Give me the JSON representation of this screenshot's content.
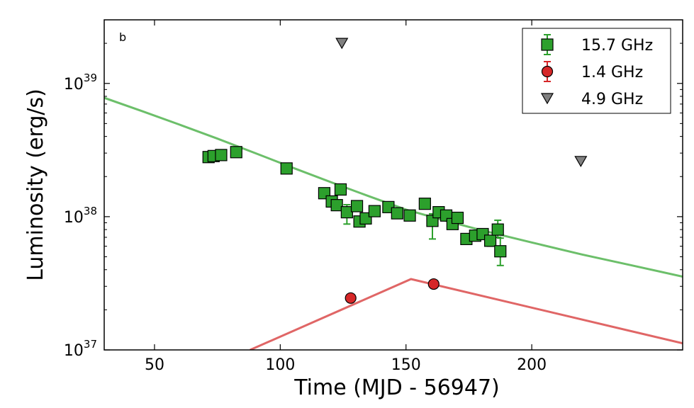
{
  "chart_data": {
    "type": "scatter",
    "panel_label": "b",
    "xlabel": "Time (MJD - 56947)",
    "ylabel": "Luminosity (erg/s)",
    "xlim": [
      30,
      260
    ],
    "ylim": [
      1e+37,
      3e+39
    ],
    "yscale": "log",
    "x_ticks": [
      50,
      100,
      150,
      200
    ],
    "y_ticks": [
      {
        "value": 1e+37,
        "base": "10",
        "exp": "37"
      },
      {
        "value": 1e+38,
        "base": "10",
        "exp": "38"
      },
      {
        "value": 1e+39,
        "base": "10",
        "exp": "39"
      }
    ],
    "series": [
      {
        "name": "15.7 GHz",
        "marker": "square",
        "color": "#2ca02c",
        "points": [
          {
            "x": 71.5,
            "y": 2.8e+38
          },
          {
            "x": 73.5,
            "y": 2.85e+38
          },
          {
            "x": 76.5,
            "y": 2.9e+38
          },
          {
            "x": 82.5,
            "y": 3.05e+38
          },
          {
            "x": 102.5,
            "y": 2.3e+38
          },
          {
            "x": 117.5,
            "y": 1.5e+38
          },
          {
            "x": 120.5,
            "y": 1.3e+38
          },
          {
            "x": 122.5,
            "y": 1.22e+38
          },
          {
            "x": 124,
            "y": 1.6e+38
          },
          {
            "x": 126.5,
            "y": 1.08e+38,
            "err": [
              2e+37,
              1.5e+37
            ]
          },
          {
            "x": 130.5,
            "y": 1.2e+38
          },
          {
            "x": 131.5,
            "y": 9.2e+37
          },
          {
            "x": 134,
            "y": 9.7e+37
          },
          {
            "x": 137.5,
            "y": 1.1e+38
          },
          {
            "x": 143,
            "y": 1.18e+38
          },
          {
            "x": 146.5,
            "y": 1.06e+38
          },
          {
            "x": 151.5,
            "y": 1.02e+38
          },
          {
            "x": 157.5,
            "y": 1.25e+38
          },
          {
            "x": 160.5,
            "y": 9.3e+37,
            "err": [
              2.5e+37,
              1.2e+37
            ]
          },
          {
            "x": 163,
            "y": 1.08e+38
          },
          {
            "x": 166,
            "y": 1.02e+38
          },
          {
            "x": 168.5,
            "y": 8.8e+37
          },
          {
            "x": 170.5,
            "y": 9.8e+37
          },
          {
            "x": 174,
            "y": 6.8e+37
          },
          {
            "x": 177.5,
            "y": 7.2e+37
          },
          {
            "x": 180.5,
            "y": 7.4e+37
          },
          {
            "x": 183.5,
            "y": 6.6e+37,
            "err": [
              6e+36,
              6e+36
            ]
          },
          {
            "x": 186.5,
            "y": 8e+37,
            "err": [
              1e+37,
              1.4e+37
            ]
          },
          {
            "x": 187.5,
            "y": 5.5e+37,
            "err": [
              1.2e+37,
              1.4e+37
            ]
          }
        ]
      },
      {
        "name": "1.4 GHz",
        "marker": "circle",
        "color": "#d62728",
        "points": [
          {
            "x": 128,
            "y": 2.45e+37
          },
          {
            "x": 161,
            "y": 3.12e+37
          }
        ]
      },
      {
        "name": "4.9 GHz",
        "marker": "triangle-down",
        "color": "#808080",
        "points": [
          {
            "x": 124.5,
            "y": 2e+39
          },
          {
            "x": 219.5,
            "y": 2.6e+38
          }
        ]
      }
    ],
    "model_curves": [
      {
        "name": "15.7 GHz model",
        "color": "#6cbf6a",
        "points": [
          {
            "x": 30,
            "y": 7.8e+38
          },
          {
            "x": 45,
            "y": 6.2e+38
          },
          {
            "x": 60,
            "y": 4.9e+38
          },
          {
            "x": 75,
            "y": 3.85e+38
          },
          {
            "x": 90,
            "y": 3e+38
          },
          {
            "x": 105,
            "y": 2.33e+38
          },
          {
            "x": 120,
            "y": 1.82e+38
          },
          {
            "x": 135,
            "y": 1.43e+38
          },
          {
            "x": 150,
            "y": 1.13e+38
          },
          {
            "x": 165,
            "y": 9.4e+37
          },
          {
            "x": 180,
            "y": 7.9e+37
          },
          {
            "x": 200,
            "y": 6.4e+37
          },
          {
            "x": 220,
            "y": 5.2e+37
          },
          {
            "x": 240,
            "y": 4.3e+37
          },
          {
            "x": 260,
            "y": 3.55e+37
          }
        ]
      },
      {
        "name": "1.4 GHz model",
        "color": "#e06666",
        "points": [
          {
            "x": 88,
            "y": 1e+37
          },
          {
            "x": 152,
            "y": 3.4e+37
          },
          {
            "x": 260,
            "y": 1.12e+37
          }
        ]
      }
    ],
    "legend": {
      "position": "top-right",
      "entries": [
        "15.7 GHz",
        "1.4 GHz",
        "4.9 GHz"
      ]
    }
  }
}
